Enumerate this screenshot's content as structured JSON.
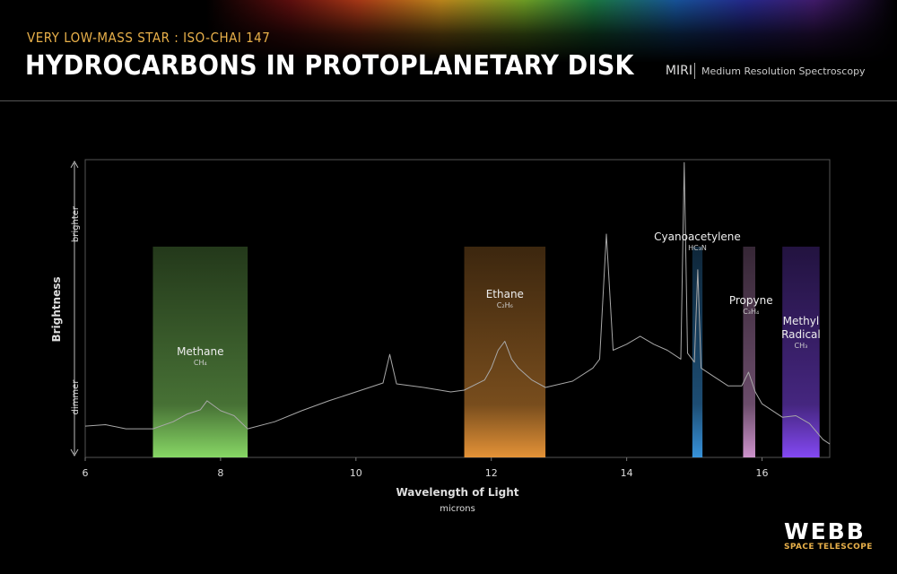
{
  "header": {
    "subtitle": "VERY LOW-MASS STAR : ISO-CHAI 147",
    "title": "HYDROCARBONS IN PROTOPLANETARY DISK",
    "instrument": "MIRI",
    "mode": "Medium Resolution Spectroscopy"
  },
  "chart_data": {
    "type": "line",
    "x_label": "Wavelength of Light",
    "x_unit": "microns",
    "y_label": "Brightness",
    "y_high": "brighter",
    "y_low": "dimmer",
    "xlim": [
      6,
      17
    ],
    "xticks": [
      6,
      8,
      10,
      12,
      14,
      16
    ],
    "ylim": [
      0,
      100
    ],
    "series": [
      {
        "color": "#a8a8a8",
        "x": [
          6.0,
          6.3,
          6.6,
          7.0,
          7.3,
          7.5,
          7.7,
          7.8,
          8.0,
          8.2,
          8.4,
          8.8,
          9.2,
          9.6,
          10.0,
          10.4,
          10.5,
          10.6,
          11.0,
          11.4,
          11.6,
          11.9,
          12.0,
          12.1,
          12.2,
          12.3,
          12.4,
          12.6,
          12.8,
          13.2,
          13.5,
          13.6,
          13.7,
          13.8,
          14.0,
          14.2,
          14.4,
          14.6,
          14.8,
          14.85,
          14.9,
          15.0,
          15.05,
          15.1,
          15.3,
          15.5,
          15.7,
          15.8,
          15.9,
          16.0,
          16.3,
          16.5,
          16.7,
          16.9,
          17.0
        ],
        "values": [
          10.5,
          11,
          9.6,
          9.6,
          12,
          14.5,
          16,
          19,
          15.7,
          14,
          9.6,
          12,
          15.7,
          19,
          22,
          25,
          34.6,
          24.7,
          23.5,
          22,
          22.6,
          26,
          30,
          36,
          39,
          33,
          30,
          26,
          23.5,
          25.6,
          30,
          33,
          75,
          36,
          38,
          40.7,
          38,
          36,
          33,
          99,
          35,
          32,
          63,
          30,
          27,
          24,
          24,
          28.6,
          22,
          18,
          13.5,
          14,
          11.4,
          6,
          4.5
        ]
      }
    ],
    "bands": [
      {
        "name": "Methane",
        "formula": "CH₄",
        "range": [
          7.0,
          8.4
        ],
        "color": "#8ee26a"
      },
      {
        "name": "Ethane",
        "formula": "C₂H₆",
        "range": [
          11.6,
          12.8
        ],
        "color": "#f09a3a"
      },
      {
        "name": "Cyanoacetylene",
        "formula": "HC₃N",
        "range": [
          14.97,
          15.12
        ],
        "color": "#3a9ae6"
      },
      {
        "name": "Propyne",
        "formula": "C₃H₄",
        "range": [
          15.72,
          15.9
        ],
        "color": "#d79ad6"
      },
      {
        "name": "Methyl Radical",
        "formula": "CH₃",
        "range": [
          16.3,
          16.85
        ],
        "color": "#8a4cff"
      }
    ]
  },
  "logo": {
    "name": "WEBB",
    "subtitle": "SPACE TELESCOPE"
  }
}
